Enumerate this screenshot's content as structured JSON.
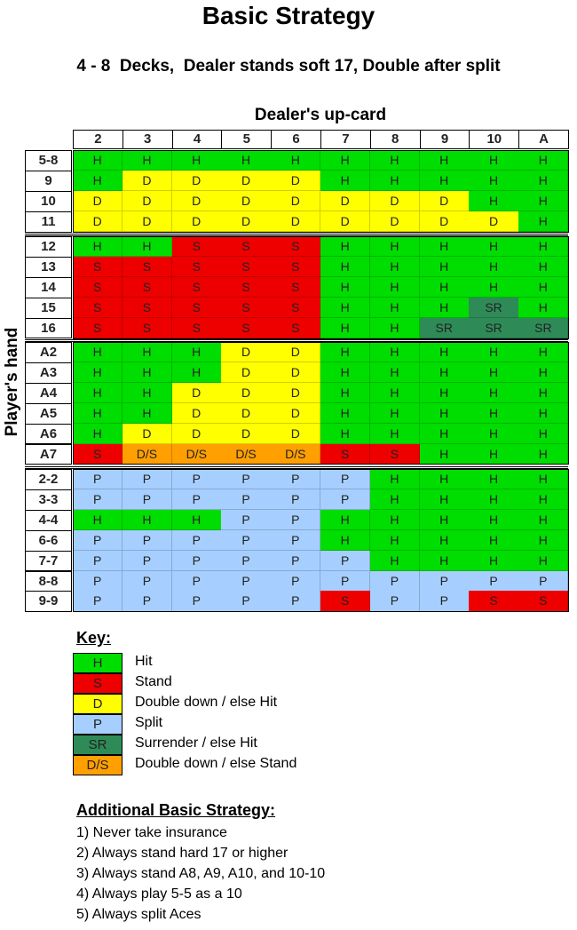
{
  "title": "Basic Strategy",
  "subtitle": "4 - 8  Decks,  Dealer stands soft 17, Double after split",
  "table": {
    "column_title": "Dealer's up-card",
    "row_title": "Player's hand",
    "columns": [
      "2",
      "3",
      "4",
      "5",
      "6",
      "7",
      "8",
      "9",
      "10",
      "A"
    ],
    "groups": [
      {
        "rows": [
          {
            "label": "5-8",
            "cells": [
              "H",
              "H",
              "H",
              "H",
              "H",
              "H",
              "H",
              "H",
              "H",
              "H"
            ]
          },
          {
            "label": "9",
            "cells": [
              "H",
              "D",
              "D",
              "D",
              "D",
              "H",
              "H",
              "H",
              "H",
              "H"
            ]
          },
          {
            "label": "10",
            "cells": [
              "D",
              "D",
              "D",
              "D",
              "D",
              "D",
              "D",
              "D",
              "H",
              "H"
            ]
          },
          {
            "label": "11",
            "cells": [
              "D",
              "D",
              "D",
              "D",
              "D",
              "D",
              "D",
              "D",
              "D",
              "H"
            ]
          }
        ]
      },
      {
        "rows": [
          {
            "label": "12",
            "cells": [
              "H",
              "H",
              "S",
              "S",
              "S",
              "H",
              "H",
              "H",
              "H",
              "H"
            ]
          },
          {
            "label": "13",
            "cells": [
              "S",
              "S",
              "S",
              "S",
              "S",
              "H",
              "H",
              "H",
              "H",
              "H"
            ]
          },
          {
            "label": "14",
            "cells": [
              "S",
              "S",
              "S",
              "S",
              "S",
              "H",
              "H",
              "H",
              "H",
              "H"
            ]
          },
          {
            "label": "15",
            "cells": [
              "S",
              "S",
              "S",
              "S",
              "S",
              "H",
              "H",
              "H",
              "SR",
              "H"
            ]
          },
          {
            "label": "16",
            "cells": [
              "S",
              "S",
              "S",
              "S",
              "S",
              "H",
              "H",
              "SR",
              "SR",
              "SR"
            ]
          }
        ]
      },
      {
        "rows": [
          {
            "label": "A2",
            "cells": [
              "H",
              "H",
              "H",
              "D",
              "D",
              "H",
              "H",
              "H",
              "H",
              "H"
            ]
          },
          {
            "label": "A3",
            "cells": [
              "H",
              "H",
              "H",
              "D",
              "D",
              "H",
              "H",
              "H",
              "H",
              "H"
            ]
          },
          {
            "label": "A4",
            "cells": [
              "H",
              "H",
              "D",
              "D",
              "D",
              "H",
              "H",
              "H",
              "H",
              "H"
            ]
          },
          {
            "label": "A5",
            "cells": [
              "H",
              "H",
              "D",
              "D",
              "D",
              "H",
              "H",
              "H",
              "H",
              "H"
            ]
          },
          {
            "label": "A6",
            "cells": [
              "H",
              "D",
              "D",
              "D",
              "D",
              "H",
              "H",
              "H",
              "H",
              "H"
            ]
          },
          {
            "label": "A7",
            "cells": [
              "S",
              "D/S",
              "D/S",
              "D/S",
              "D/S",
              "S",
              "S",
              "H",
              "H",
              "H"
            ]
          }
        ]
      },
      {
        "rows": [
          {
            "label": "2-2",
            "cells": [
              "P",
              "P",
              "P",
              "P",
              "P",
              "P",
              "H",
              "H",
              "H",
              "H"
            ]
          },
          {
            "label": "3-3",
            "cells": [
              "P",
              "P",
              "P",
              "P",
              "P",
              "P",
              "H",
              "H",
              "H",
              "H"
            ]
          },
          {
            "label": "4-4",
            "cells": [
              "H",
              "H",
              "H",
              "P",
              "P",
              "H",
              "H",
              "H",
              "H",
              "H"
            ]
          },
          {
            "label": "6-6",
            "cells": [
              "P",
              "P",
              "P",
              "P",
              "P",
              "H",
              "H",
              "H",
              "H",
              "H"
            ]
          },
          {
            "label": "7-7",
            "cells": [
              "P",
              "P",
              "P",
              "P",
              "P",
              "P",
              "H",
              "H",
              "H",
              "H"
            ]
          },
          {
            "label": "8-8",
            "cells": [
              "P",
              "P",
              "P",
              "P",
              "P",
              "P",
              "P",
              "P",
              "P",
              "P"
            ]
          },
          {
            "label": "9-9",
            "cells": [
              "P",
              "P",
              "P",
              "P",
              "P",
              "S",
              "P",
              "P",
              "S",
              "S"
            ]
          }
        ]
      }
    ]
  },
  "colors": {
    "H": "#00dd00",
    "S": "#ee0000",
    "D": "#ffff00",
    "P": "#a6cfff",
    "SR": "#2e8b57",
    "D/S": "#ff9f00"
  },
  "key": {
    "title": "Key:",
    "items": [
      {
        "code": "H",
        "label": "Hit"
      },
      {
        "code": "S",
        "label": "Stand"
      },
      {
        "code": "D",
        "label": "Double down / else Hit"
      },
      {
        "code": "P",
        "label": "Split"
      },
      {
        "code": "SR",
        "label": "Surrender / else Hit"
      },
      {
        "code": "D/S",
        "label": "Double down / else Stand"
      }
    ]
  },
  "additional": {
    "title": "Additional Basic Strategy:",
    "items": [
      "1) Never take insurance",
      "2) Always stand hard 17 or higher",
      "3) Always stand A8, A9, A10, and 10-10",
      "4) Always play 5-5 as a 10",
      "5) Always split Aces"
    ]
  }
}
